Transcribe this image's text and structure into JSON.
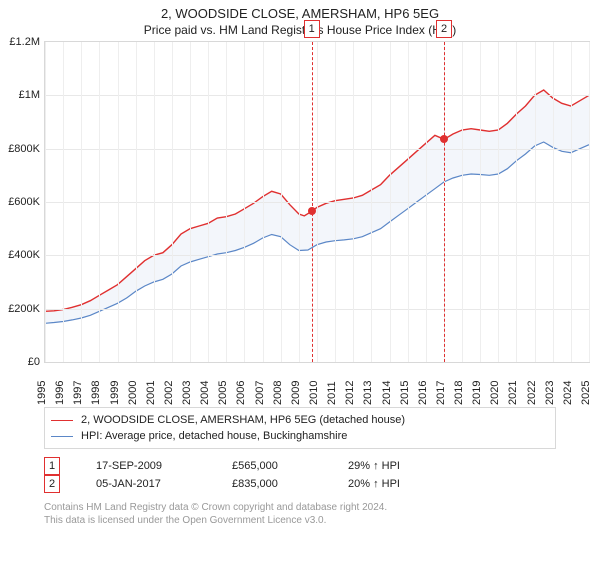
{
  "title": "2, WOODSIDE CLOSE, AMERSHAM, HP6 5EG",
  "subtitle": "Price paid vs. HM Land Registry's House Price Index (HPI)",
  "chart": {
    "type": "line",
    "width_css": 546,
    "height_css": 320,
    "background_color": "#ffffff",
    "grid_color_h": "#e8e8e8",
    "grid_color_v": "#eeeeee",
    "border_color": "#d8d8d8",
    "x": {
      "min": 1995,
      "max": 2025,
      "ticks": [
        1995,
        1996,
        1997,
        1998,
        1999,
        2000,
        2001,
        2002,
        2003,
        2004,
        2005,
        2006,
        2007,
        2008,
        2009,
        2010,
        2011,
        2012,
        2013,
        2014,
        2015,
        2016,
        2017,
        2018,
        2019,
        2020,
        2021,
        2022,
        2023,
        2024,
        2025
      ],
      "label_fontsize": 11
    },
    "y": {
      "min": 0,
      "max": 1200000,
      "ticks": [
        0,
        200000,
        400000,
        600000,
        800000,
        1000000,
        1200000
      ],
      "tick_labels": [
        "£0",
        "£200K",
        "£400K",
        "£600K",
        "£800K",
        "£1M",
        "£1.2M"
      ],
      "label_fontsize": 11
    },
    "shaded_band": {
      "from_series": "hpi",
      "to_series": "subject",
      "fill": "#eef2fa",
      "opacity": 0.7
    },
    "series": {
      "subject": {
        "label": "2, WOODSIDE CLOSE, AMERSHAM, HP6 5EG (detached house)",
        "color": "#e03030",
        "line_width": 1.4,
        "points": [
          [
            1995.0,
            190000
          ],
          [
            1995.5,
            192000
          ],
          [
            1996.0,
            197000
          ],
          [
            1996.5,
            205000
          ],
          [
            1997.0,
            215000
          ],
          [
            1997.5,
            230000
          ],
          [
            1998.0,
            250000
          ],
          [
            1998.5,
            270000
          ],
          [
            1999.0,
            290000
          ],
          [
            1999.5,
            320000
          ],
          [
            2000.0,
            350000
          ],
          [
            2000.5,
            380000
          ],
          [
            2001.0,
            400000
          ],
          [
            2001.5,
            410000
          ],
          [
            2002.0,
            440000
          ],
          [
            2002.5,
            480000
          ],
          [
            2003.0,
            500000
          ],
          [
            2003.5,
            510000
          ],
          [
            2004.0,
            520000
          ],
          [
            2004.5,
            540000
          ],
          [
            2005.0,
            545000
          ],
          [
            2005.5,
            555000
          ],
          [
            2006.0,
            575000
          ],
          [
            2006.5,
            595000
          ],
          [
            2007.0,
            620000
          ],
          [
            2007.5,
            640000
          ],
          [
            2008.0,
            630000
          ],
          [
            2008.5,
            590000
          ],
          [
            2009.0,
            555000
          ],
          [
            2009.3,
            548000
          ],
          [
            2009.71,
            565000
          ],
          [
            2010.0,
            580000
          ],
          [
            2010.5,
            595000
          ],
          [
            2011.0,
            605000
          ],
          [
            2011.5,
            610000
          ],
          [
            2012.0,
            615000
          ],
          [
            2012.5,
            625000
          ],
          [
            2013.0,
            645000
          ],
          [
            2013.5,
            665000
          ],
          [
            2014.0,
            700000
          ],
          [
            2014.5,
            730000
          ],
          [
            2015.0,
            760000
          ],
          [
            2015.5,
            790000
          ],
          [
            2016.0,
            820000
          ],
          [
            2016.5,
            850000
          ],
          [
            2017.01,
            835000
          ],
          [
            2017.5,
            855000
          ],
          [
            2018.0,
            870000
          ],
          [
            2018.5,
            875000
          ],
          [
            2019.0,
            870000
          ],
          [
            2019.5,
            865000
          ],
          [
            2020.0,
            870000
          ],
          [
            2020.5,
            895000
          ],
          [
            2021.0,
            930000
          ],
          [
            2021.5,
            960000
          ],
          [
            2022.0,
            1000000
          ],
          [
            2022.5,
            1020000
          ],
          [
            2023.0,
            990000
          ],
          [
            2023.5,
            970000
          ],
          [
            2024.0,
            960000
          ],
          [
            2024.5,
            980000
          ],
          [
            2025.0,
            1000000
          ]
        ]
      },
      "hpi": {
        "label": "HPI: Average price, detached house, Buckinghamshire",
        "color": "#5b87c7",
        "line_width": 1.2,
        "points": [
          [
            1995.0,
            145000
          ],
          [
            1995.5,
            148000
          ],
          [
            1996.0,
            152000
          ],
          [
            1996.5,
            158000
          ],
          [
            1997.0,
            165000
          ],
          [
            1997.5,
            175000
          ],
          [
            1998.0,
            190000
          ],
          [
            1998.5,
            205000
          ],
          [
            1999.0,
            220000
          ],
          [
            1999.5,
            240000
          ],
          [
            2000.0,
            265000
          ],
          [
            2000.5,
            285000
          ],
          [
            2001.0,
            300000
          ],
          [
            2001.5,
            310000
          ],
          [
            2002.0,
            330000
          ],
          [
            2002.5,
            360000
          ],
          [
            2003.0,
            375000
          ],
          [
            2003.5,
            385000
          ],
          [
            2004.0,
            395000
          ],
          [
            2004.5,
            405000
          ],
          [
            2005.0,
            410000
          ],
          [
            2005.5,
            418000
          ],
          [
            2006.0,
            430000
          ],
          [
            2006.5,
            445000
          ],
          [
            2007.0,
            465000
          ],
          [
            2007.5,
            478000
          ],
          [
            2008.0,
            470000
          ],
          [
            2008.5,
            440000
          ],
          [
            2009.0,
            418000
          ],
          [
            2009.5,
            420000
          ],
          [
            2010.0,
            440000
          ],
          [
            2010.5,
            450000
          ],
          [
            2011.0,
            455000
          ],
          [
            2011.5,
            458000
          ],
          [
            2012.0,
            462000
          ],
          [
            2012.5,
            470000
          ],
          [
            2013.0,
            485000
          ],
          [
            2013.5,
            500000
          ],
          [
            2014.0,
            525000
          ],
          [
            2014.5,
            550000
          ],
          [
            2015.0,
            575000
          ],
          [
            2015.5,
            600000
          ],
          [
            2016.0,
            625000
          ],
          [
            2016.5,
            650000
          ],
          [
            2017.0,
            675000
          ],
          [
            2017.5,
            690000
          ],
          [
            2018.0,
            700000
          ],
          [
            2018.5,
            705000
          ],
          [
            2019.0,
            703000
          ],
          [
            2019.5,
            700000
          ],
          [
            2020.0,
            705000
          ],
          [
            2020.5,
            725000
          ],
          [
            2021.0,
            755000
          ],
          [
            2021.5,
            780000
          ],
          [
            2022.0,
            810000
          ],
          [
            2022.5,
            825000
          ],
          [
            2023.0,
            805000
          ],
          [
            2023.5,
            790000
          ],
          [
            2024.0,
            785000
          ],
          [
            2024.5,
            800000
          ],
          [
            2025.0,
            815000
          ]
        ]
      }
    },
    "markers": [
      {
        "id": "1",
        "x": 2009.71,
        "y": 565000,
        "box_top": true
      },
      {
        "id": "2",
        "x": 2017.01,
        "y": 835000,
        "box_top": true
      }
    ]
  },
  "legend": {
    "items": [
      {
        "color": "#e03030",
        "label": "2, WOODSIDE CLOSE, AMERSHAM, HP6 5EG (detached house)"
      },
      {
        "color": "#5b87c7",
        "label": "HPI: Average price, detached house, Buckinghamshire"
      }
    ]
  },
  "transactions": [
    {
      "num": "1",
      "date": "17-SEP-2009",
      "price": "£565,000",
      "hpi": "29% ↑ HPI"
    },
    {
      "num": "2",
      "date": "05-JAN-2017",
      "price": "£835,000",
      "hpi": "20% ↑ HPI"
    }
  ],
  "footer": {
    "line1": "Contains HM Land Registry data © Crown copyright and database right 2024.",
    "line2": "This data is licensed under the Open Government Licence v3.0."
  }
}
